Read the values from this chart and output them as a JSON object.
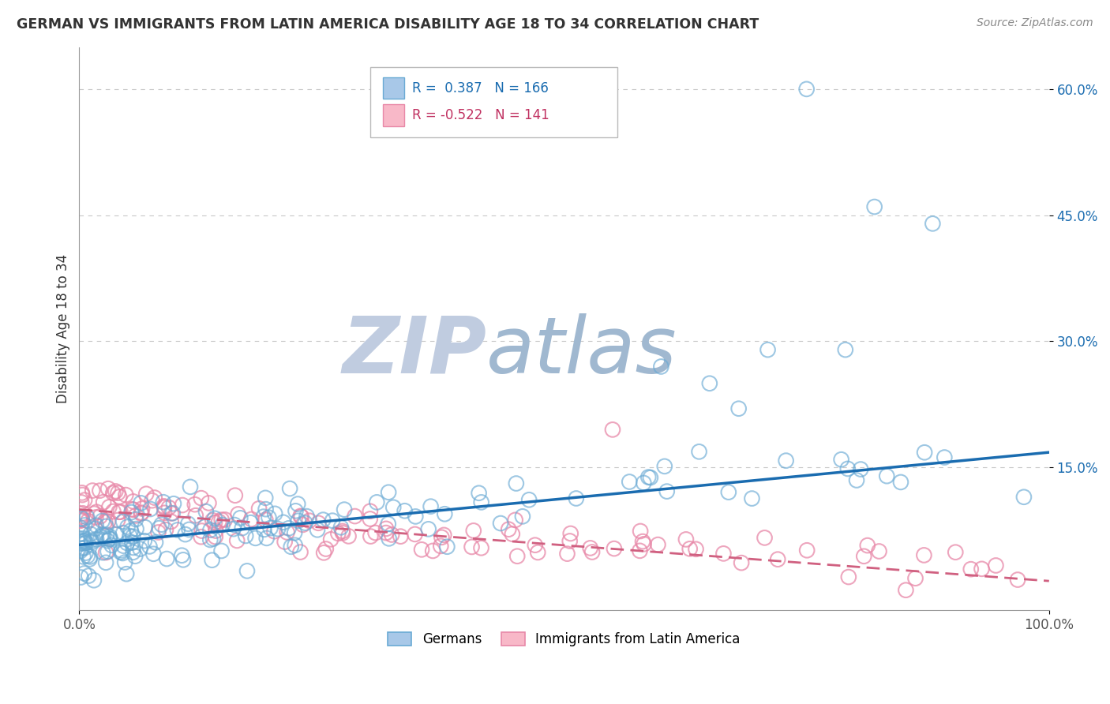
{
  "title": "GERMAN VS IMMIGRANTS FROM LATIN AMERICA DISABILITY AGE 18 TO 34 CORRELATION CHART",
  "source": "Source: ZipAtlas.com",
  "ylabel": "Disability Age 18 to 34",
  "xlim": [
    0.0,
    1.0
  ],
  "ylim": [
    -0.02,
    0.65
  ],
  "yticks": [
    0.0,
    0.15,
    0.3,
    0.45,
    0.6
  ],
  "legend_blue_r": "0.387",
  "legend_blue_n": "166",
  "legend_pink_r": "-0.522",
  "legend_pink_n": "141",
  "blue_color": "#a8c8e8",
  "blue_edge_color": "#6aaad4",
  "pink_color": "#f8b8c8",
  "pink_edge_color": "#e888a8",
  "blue_line_color": "#1a6cb0",
  "pink_line_color": "#d06080",
  "title_color": "#333333",
  "source_color": "#888888",
  "grid_color": "#c8c8c8",
  "watermark_zip_color": "#c0cce0",
  "watermark_atlas_color": "#a0b8d0",
  "blue_intercept": 0.058,
  "blue_slope": 0.11,
  "pink_intercept": 0.1,
  "pink_slope": -0.085,
  "seed": 99
}
